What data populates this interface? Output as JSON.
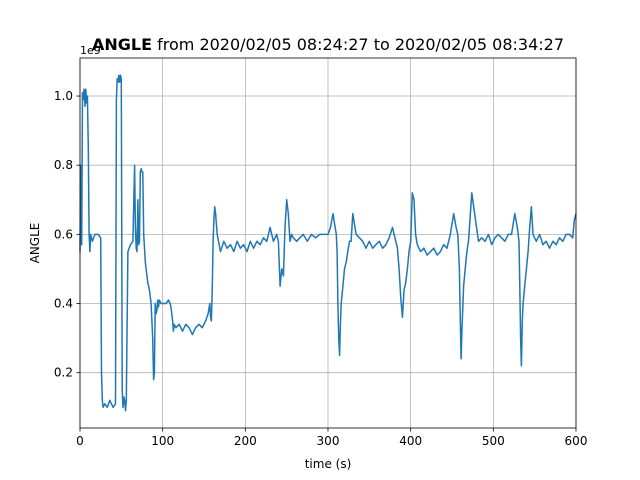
{
  "chart_data": {
    "type": "line",
    "title_bold": "ANGLE",
    "title_rest": " from 2020/02/05 08:24:27 to 2020/02/05 08:34:27",
    "xlabel": "time (s)",
    "ylabel": "ANGLE",
    "offset_text": "1e9",
    "xlim": [
      0,
      600
    ],
    "ylim": [
      0.04,
      1.11
    ],
    "grid": true,
    "legend": "none",
    "x_ticks": [
      0,
      100,
      200,
      300,
      400,
      500,
      600
    ],
    "x_tick_labels": [
      "0",
      "100",
      "200",
      "300",
      "400",
      "500",
      "600"
    ],
    "y_ticks": [
      0.2,
      0.4,
      0.6,
      0.8,
      1.0
    ],
    "y_tick_labels": [
      "0.2",
      "0.4",
      "0.6",
      "0.8",
      "1.0"
    ],
    "colors": {
      "line": "#1f77b4",
      "grid": "#b0b0b0"
    },
    "series": [
      {
        "x": [
          0,
          1,
          2,
          3,
          4,
          5,
          6,
          7,
          8,
          9,
          10,
          11,
          12,
          13,
          15,
          18,
          22,
          25,
          26,
          27,
          28,
          30,
          33,
          36,
          40,
          43,
          44,
          45,
          46,
          47,
          48,
          49,
          50,
          51,
          52,
          53,
          54,
          55,
          56,
          58,
          61,
          64,
          66,
          67,
          68,
          69,
          70,
          71,
          72,
          73,
          74,
          75,
          76,
          77,
          78,
          79,
          80,
          82,
          84,
          86,
          88,
          89,
          90,
          91,
          92,
          93,
          94,
          95,
          96,
          98,
          101,
          104,
          107,
          109,
          110,
          111,
          112,
          113,
          114,
          116,
          120,
          124,
          128,
          132,
          136,
          140,
          144,
          148,
          152,
          155,
          157,
          158,
          159,
          160,
          161,
          162,
          163,
          164,
          166,
          170,
          174,
          178,
          182,
          186,
          190,
          194,
          198,
          202,
          206,
          210,
          214,
          218,
          222,
          226,
          230,
          234,
          238,
          240,
          242,
          244,
          246,
          248,
          250,
          252,
          254,
          256,
          258,
          262,
          266,
          270,
          275,
          280,
          285,
          290,
          295,
          300,
          303,
          306,
          308,
          310,
          311,
          312,
          313,
          314,
          315,
          316,
          318,
          320,
          322,
          324,
          326,
          328,
          330,
          334,
          338,
          342,
          346,
          350,
          354,
          358,
          362,
          366,
          370,
          374,
          378,
          380,
          382,
          384,
          386,
          388,
          390,
          392,
          394,
          396,
          398,
          400,
          402,
          404,
          406,
          408,
          412,
          416,
          420,
          424,
          428,
          432,
          436,
          440,
          444,
          448,
          452,
          455,
          457,
          459,
          460,
          461,
          462,
          463,
          464,
          466,
          468,
          470,
          474,
          478,
          482,
          486,
          490,
          494,
          498,
          502,
          506,
          510,
          514,
          518,
          522,
          526,
          529,
          531,
          532,
          533,
          534,
          535,
          536,
          538,
          540,
          542,
          544,
          546,
          548,
          552,
          556,
          560,
          564,
          568,
          572,
          576,
          580,
          584,
          588,
          592,
          596,
          598,
          600
        ],
        "y": [
          0.55,
          0.8,
          0.57,
          1.01,
          0.99,
          1.02,
          0.97,
          1.02,
          0.98,
          1.0,
          0.85,
          0.6,
          0.55,
          0.6,
          0.58,
          0.6,
          0.6,
          0.59,
          0.2,
          0.12,
          0.1,
          0.11,
          0.1,
          0.12,
          0.1,
          0.11,
          0.99,
          1.05,
          1.04,
          1.06,
          1.04,
          1.06,
          1.05,
          0.15,
          0.1,
          0.13,
          0.12,
          0.09,
          0.12,
          0.55,
          0.57,
          0.58,
          0.8,
          0.62,
          0.56,
          0.55,
          0.7,
          0.57,
          0.58,
          0.78,
          0.79,
          0.78,
          0.78,
          0.6,
          0.56,
          0.52,
          0.5,
          0.46,
          0.44,
          0.4,
          0.3,
          0.18,
          0.2,
          0.4,
          0.37,
          0.38,
          0.41,
          0.39,
          0.41,
          0.4,
          0.4,
          0.4,
          0.41,
          0.4,
          0.39,
          0.37,
          0.35,
          0.32,
          0.34,
          0.33,
          0.34,
          0.32,
          0.34,
          0.33,
          0.31,
          0.33,
          0.34,
          0.33,
          0.35,
          0.37,
          0.4,
          0.36,
          0.35,
          0.45,
          0.58,
          0.64,
          0.68,
          0.66,
          0.6,
          0.55,
          0.58,
          0.56,
          0.57,
          0.55,
          0.58,
          0.56,
          0.57,
          0.55,
          0.58,
          0.56,
          0.58,
          0.57,
          0.59,
          0.58,
          0.62,
          0.58,
          0.6,
          0.58,
          0.45,
          0.5,
          0.48,
          0.62,
          0.7,
          0.66,
          0.58,
          0.6,
          0.59,
          0.58,
          0.59,
          0.6,
          0.58,
          0.6,
          0.59,
          0.6,
          0.6,
          0.6,
          0.62,
          0.66,
          0.63,
          0.6,
          0.55,
          0.4,
          0.3,
          0.25,
          0.34,
          0.4,
          0.45,
          0.5,
          0.52,
          0.55,
          0.58,
          0.58,
          0.66,
          0.6,
          0.59,
          0.58,
          0.56,
          0.58,
          0.56,
          0.57,
          0.58,
          0.56,
          0.57,
          0.59,
          0.62,
          0.6,
          0.58,
          0.56,
          0.5,
          0.42,
          0.36,
          0.44,
          0.46,
          0.5,
          0.55,
          0.58,
          0.72,
          0.7,
          0.6,
          0.57,
          0.55,
          0.56,
          0.54,
          0.55,
          0.56,
          0.54,
          0.55,
          0.57,
          0.56,
          0.6,
          0.66,
          0.62,
          0.6,
          0.5,
          0.35,
          0.24,
          0.32,
          0.38,
          0.45,
          0.5,
          0.55,
          0.58,
          0.72,
          0.65,
          0.58,
          0.59,
          0.58,
          0.6,
          0.57,
          0.59,
          0.6,
          0.59,
          0.58,
          0.6,
          0.6,
          0.66,
          0.62,
          0.58,
          0.45,
          0.3,
          0.22,
          0.35,
          0.4,
          0.45,
          0.5,
          0.55,
          0.62,
          0.68,
          0.6,
          0.58,
          0.6,
          0.57,
          0.58,
          0.56,
          0.58,
          0.57,
          0.59,
          0.58,
          0.6,
          0.6,
          0.59,
          0.64,
          0.66
        ]
      }
    ]
  }
}
